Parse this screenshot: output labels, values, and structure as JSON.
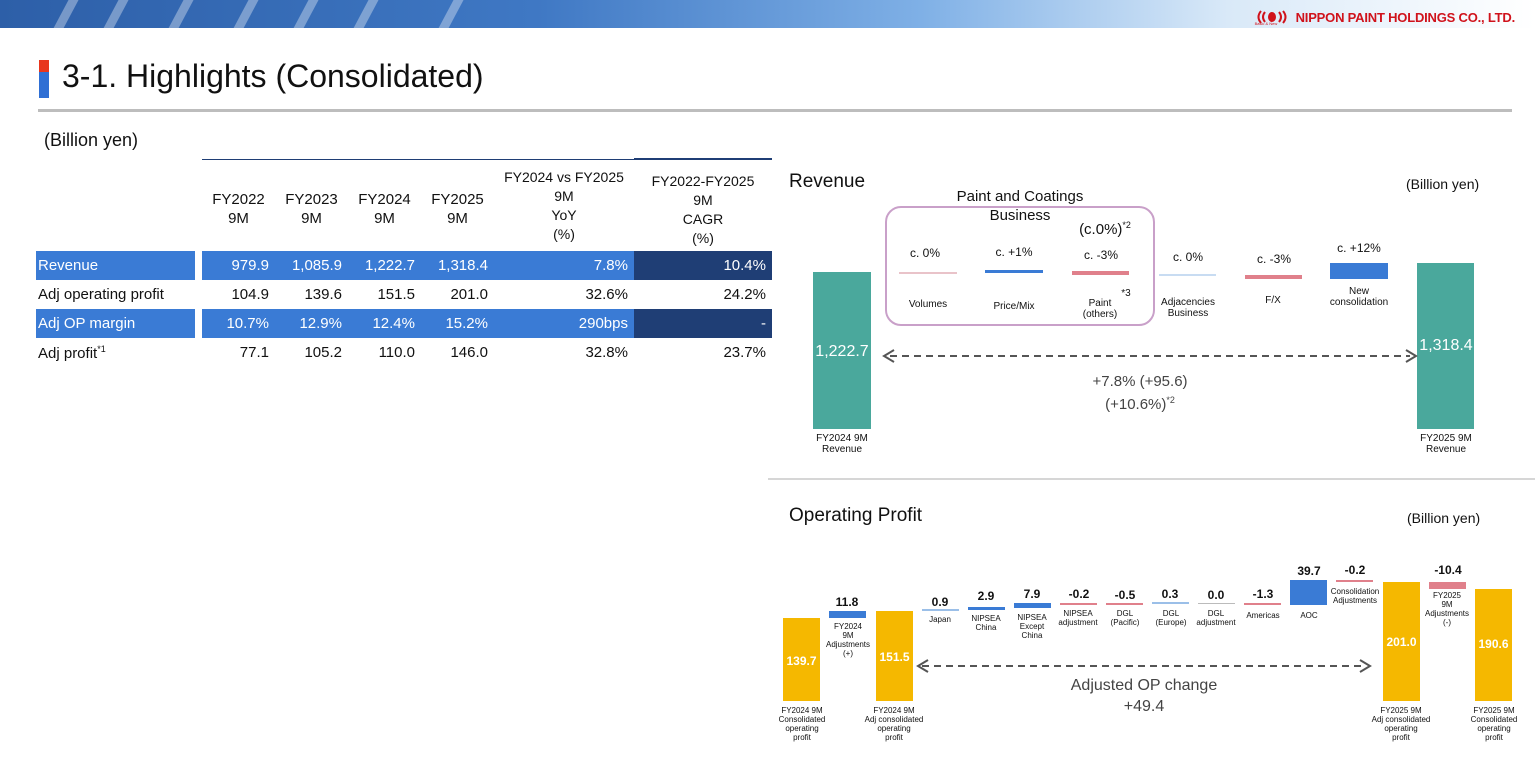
{
  "header": {
    "company": "NIPPON PAINT HOLDINGS CO., LTD.",
    "tagline": "Basic & New",
    "colors": {
      "red": "#d0121b",
      "blue": "#3a7bd5",
      "navy": "#1f3e75",
      "teal": "#4aa89c",
      "gold": "#f5b800",
      "pink": "#e0808b"
    }
  },
  "page_title": "3-1. Highlights (Consolidated)",
  "table": {
    "unit": "(Billion yen)",
    "columns": [
      "FY2022\n9M",
      "FY2023\n9M",
      "FY2024\n9M",
      "FY2025\n9M"
    ],
    "yoy_header": "FY2024 vs FY2025\n9M\nYoY\n(%)",
    "cagr_header": "FY2022-FY2025\n9M\nCAGR\n(%)",
    "rows": [
      {
        "label": "Revenue",
        "sup": "",
        "values": [
          "979.9",
          "1,085.9",
          "1,222.7",
          "1,318.4"
        ],
        "yoy": "7.8%",
        "cagr": "10.4%"
      },
      {
        "label": "Adj operating profit",
        "sup": "",
        "values": [
          "104.9",
          "139.6",
          "151.5",
          "201.0"
        ],
        "yoy": "32.6%",
        "cagr": "24.2%"
      },
      {
        "label": "Adj OP margin",
        "sup": "",
        "values": [
          "10.7%",
          "12.9%",
          "12.4%",
          "15.2%"
        ],
        "yoy": "290bps",
        "cagr": "-"
      },
      {
        "label": "Adj profit",
        "sup": "*1",
        "values": [
          "77.1",
          "105.2",
          "110.0",
          "146.0"
        ],
        "yoy": "32.8%",
        "cagr": "23.7%"
      }
    ]
  },
  "revenue": {
    "title": "Revenue",
    "unit": "(Billion yen)",
    "box_title": "Paint and Coatings\nBusiness",
    "box_note": "(c.0%)",
    "box_note_sup": "*2",
    "start": {
      "value": "1,222.7",
      "label": "FY2024 9M\nRevenue"
    },
    "end": {
      "value": "1,318.4",
      "label": "FY2025 9M\nRevenue"
    },
    "steps": [
      {
        "pct": "c. 0%",
        "name": "Volumes",
        "sup": ""
      },
      {
        "pct": "c. +1%",
        "name": "Price/Mix",
        "sup": ""
      },
      {
        "pct": "c. -3%",
        "name": "Paint\n(others)",
        "sup": "*3"
      },
      {
        "pct": "c. 0%",
        "name": "Adjacencies\nBusiness",
        "sup": ""
      },
      {
        "pct": "c. -3%",
        "name": "F/X",
        "sup": ""
      },
      {
        "pct": "c. +12%",
        "name": "New\nconsolidation",
        "sup": ""
      }
    ],
    "change_line1": "+7.8% (+95.6)",
    "change_line2": "(+10.6%)",
    "change_sup": "*2",
    "chart_data": {
      "type": "bar",
      "categories": [
        "FY2024 9M Revenue",
        "FY2025 9M Revenue"
      ],
      "values": [
        1222.7,
        1318.4
      ]
    }
  },
  "op": {
    "title": "Operating Profit",
    "unit": "(Billion yen)",
    "bars": [
      {
        "value": "139.7",
        "label": "FY2024 9M\nConsolidated\noperating\nprofit"
      },
      {
        "value": "11.8",
        "label": "FY2024\n9M\nAdjustments\n(+)"
      },
      {
        "value": "151.5",
        "label": "FY2024 9M\nAdj consolidated\noperating\nprofit"
      },
      {
        "value": "0.9",
        "label": "Japan"
      },
      {
        "value": "2.9",
        "label": "NIPSEA\nChina"
      },
      {
        "value": "7.9",
        "label": "NIPSEA\nExcept\nChina"
      },
      {
        "value": "-0.2",
        "label": "NIPSEA\nadjustment"
      },
      {
        "value": "-0.5",
        "label": "DGL\n(Pacific)"
      },
      {
        "value": "0.3",
        "label": "DGL\n(Europe)"
      },
      {
        "value": "0.0",
        "label": "DGL\nadjustment"
      },
      {
        "value": "-1.3",
        "label": "Americas"
      },
      {
        "value": "39.7",
        "label": "AOC"
      },
      {
        "value": "-0.2",
        "label": "Consolidation\nAdjustments"
      },
      {
        "value": "201.0",
        "label": "FY2025 9M\nAdj consolidated\noperating\nprofit"
      },
      {
        "value": "-10.4",
        "label": "FY2025\n9M\nAdjustments\n(-)"
      },
      {
        "value": "190.6",
        "label": "FY2025 9M\nConsolidated\noperating\nprofit"
      }
    ],
    "change_line1": "Adjusted OP change",
    "change_line2": "+49.4",
    "chart_data": {
      "type": "bar",
      "categories": [
        "FY2024 9M Consolidated operating profit",
        "FY2024 9M Adjustments (+)",
        "FY2024 9M Adj consolidated operating profit",
        "Japan",
        "NIPSEA China",
        "NIPSEA Except China",
        "NIPSEA adjustment",
        "DGL (Pacific)",
        "DGL (Europe)",
        "DGL adjustment",
        "Americas",
        "AOC",
        "Consolidation Adjustments",
        "FY2025 9M Adj consolidated operating profit",
        "FY2025 9M Adjustments (-)",
        "FY2025 9M Consolidated operating profit"
      ],
      "values": [
        139.7,
        11.8,
        151.5,
        0.9,
        2.9,
        7.9,
        -0.2,
        -0.5,
        0.3,
        0.0,
        -1.3,
        39.7,
        -0.2,
        201.0,
        -10.4,
        190.6
      ]
    }
  }
}
